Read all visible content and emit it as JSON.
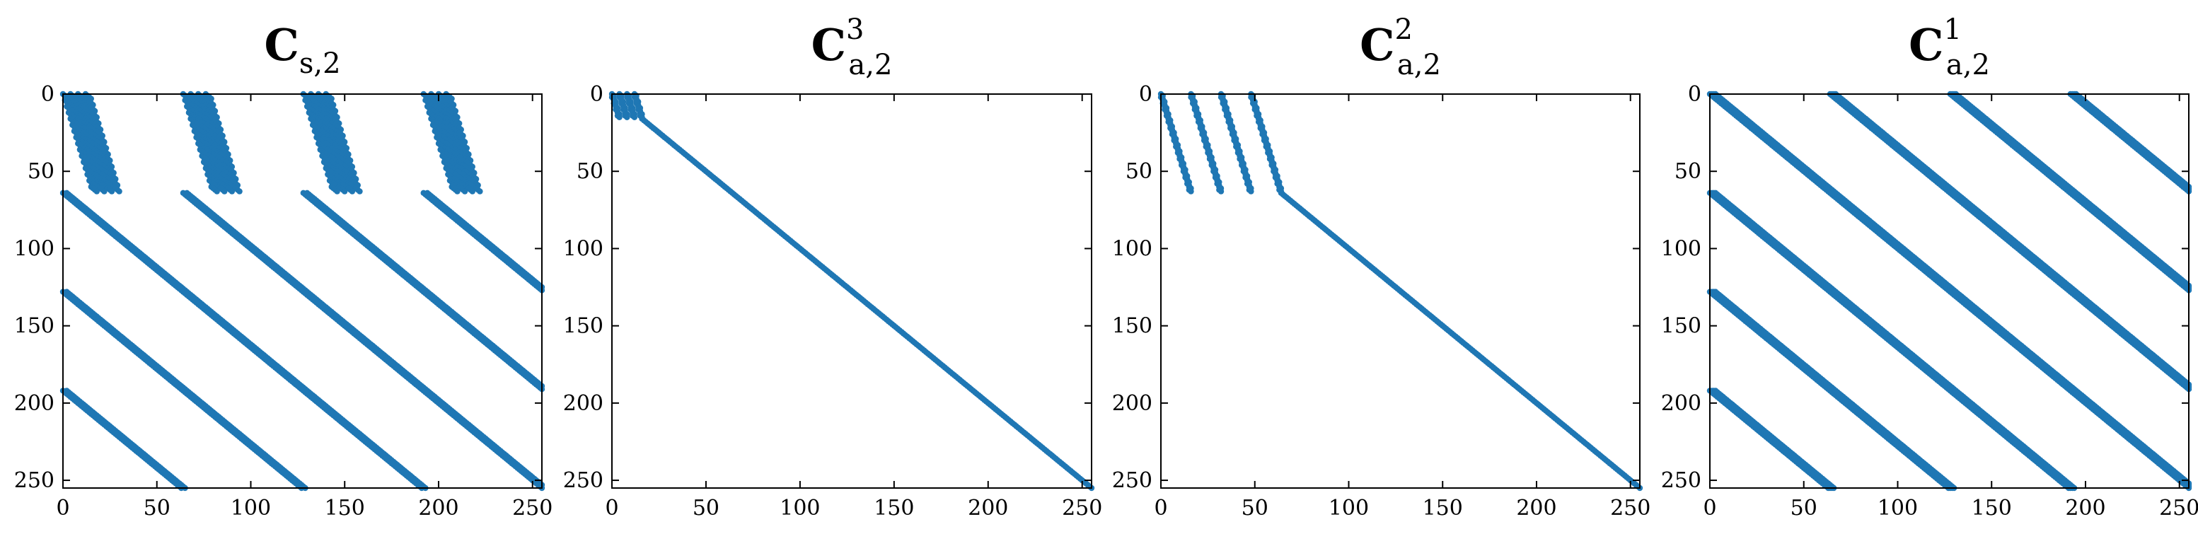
{
  "chart_data": [
    {
      "type": "scatter",
      "title": {
        "base": "C",
        "sub": "s,2",
        "sup": ""
      },
      "xlim": [
        0,
        255
      ],
      "ylim": [
        255,
        0
      ],
      "xticks": [
        0,
        50,
        100,
        150,
        200,
        250
      ],
      "yticks": [
        0,
        50,
        100,
        150,
        200,
        250
      ],
      "grid": false,
      "color": "#1f77b4",
      "pattern": "sparse-cs2"
    },
    {
      "type": "scatter",
      "title": {
        "base": "C",
        "sub": "a,2",
        "sup": "3"
      },
      "xlim": [
        0,
        255
      ],
      "ylim": [
        255,
        0
      ],
      "xticks": [
        0,
        50,
        100,
        150,
        200,
        250
      ],
      "yticks": [
        0,
        50,
        100,
        150,
        200,
        250
      ],
      "grid": false,
      "color": "#1f77b4",
      "pattern": "block-16-then-diagonal"
    },
    {
      "type": "scatter",
      "title": {
        "base": "C",
        "sub": "a,2",
        "sup": "2"
      },
      "xlim": [
        0,
        255
      ],
      "ylim": [
        255,
        0
      ],
      "xticks": [
        0,
        50,
        100,
        150,
        200,
        250
      ],
      "yticks": [
        0,
        50,
        100,
        150,
        200,
        250
      ],
      "grid": false,
      "color": "#1f77b4",
      "pattern": "block-64-then-diagonal"
    },
    {
      "type": "scatter",
      "title": {
        "base": "C",
        "sub": "a,2",
        "sup": "1"
      },
      "xlim": [
        0,
        255
      ],
      "ylim": [
        255,
        0
      ],
      "xticks": [
        0,
        50,
        100,
        150,
        200,
        250
      ],
      "yticks": [
        0,
        50,
        100,
        150,
        200,
        250
      ],
      "grid": false,
      "color": "#1f77b4",
      "pattern": "banded-diagonals"
    }
  ]
}
